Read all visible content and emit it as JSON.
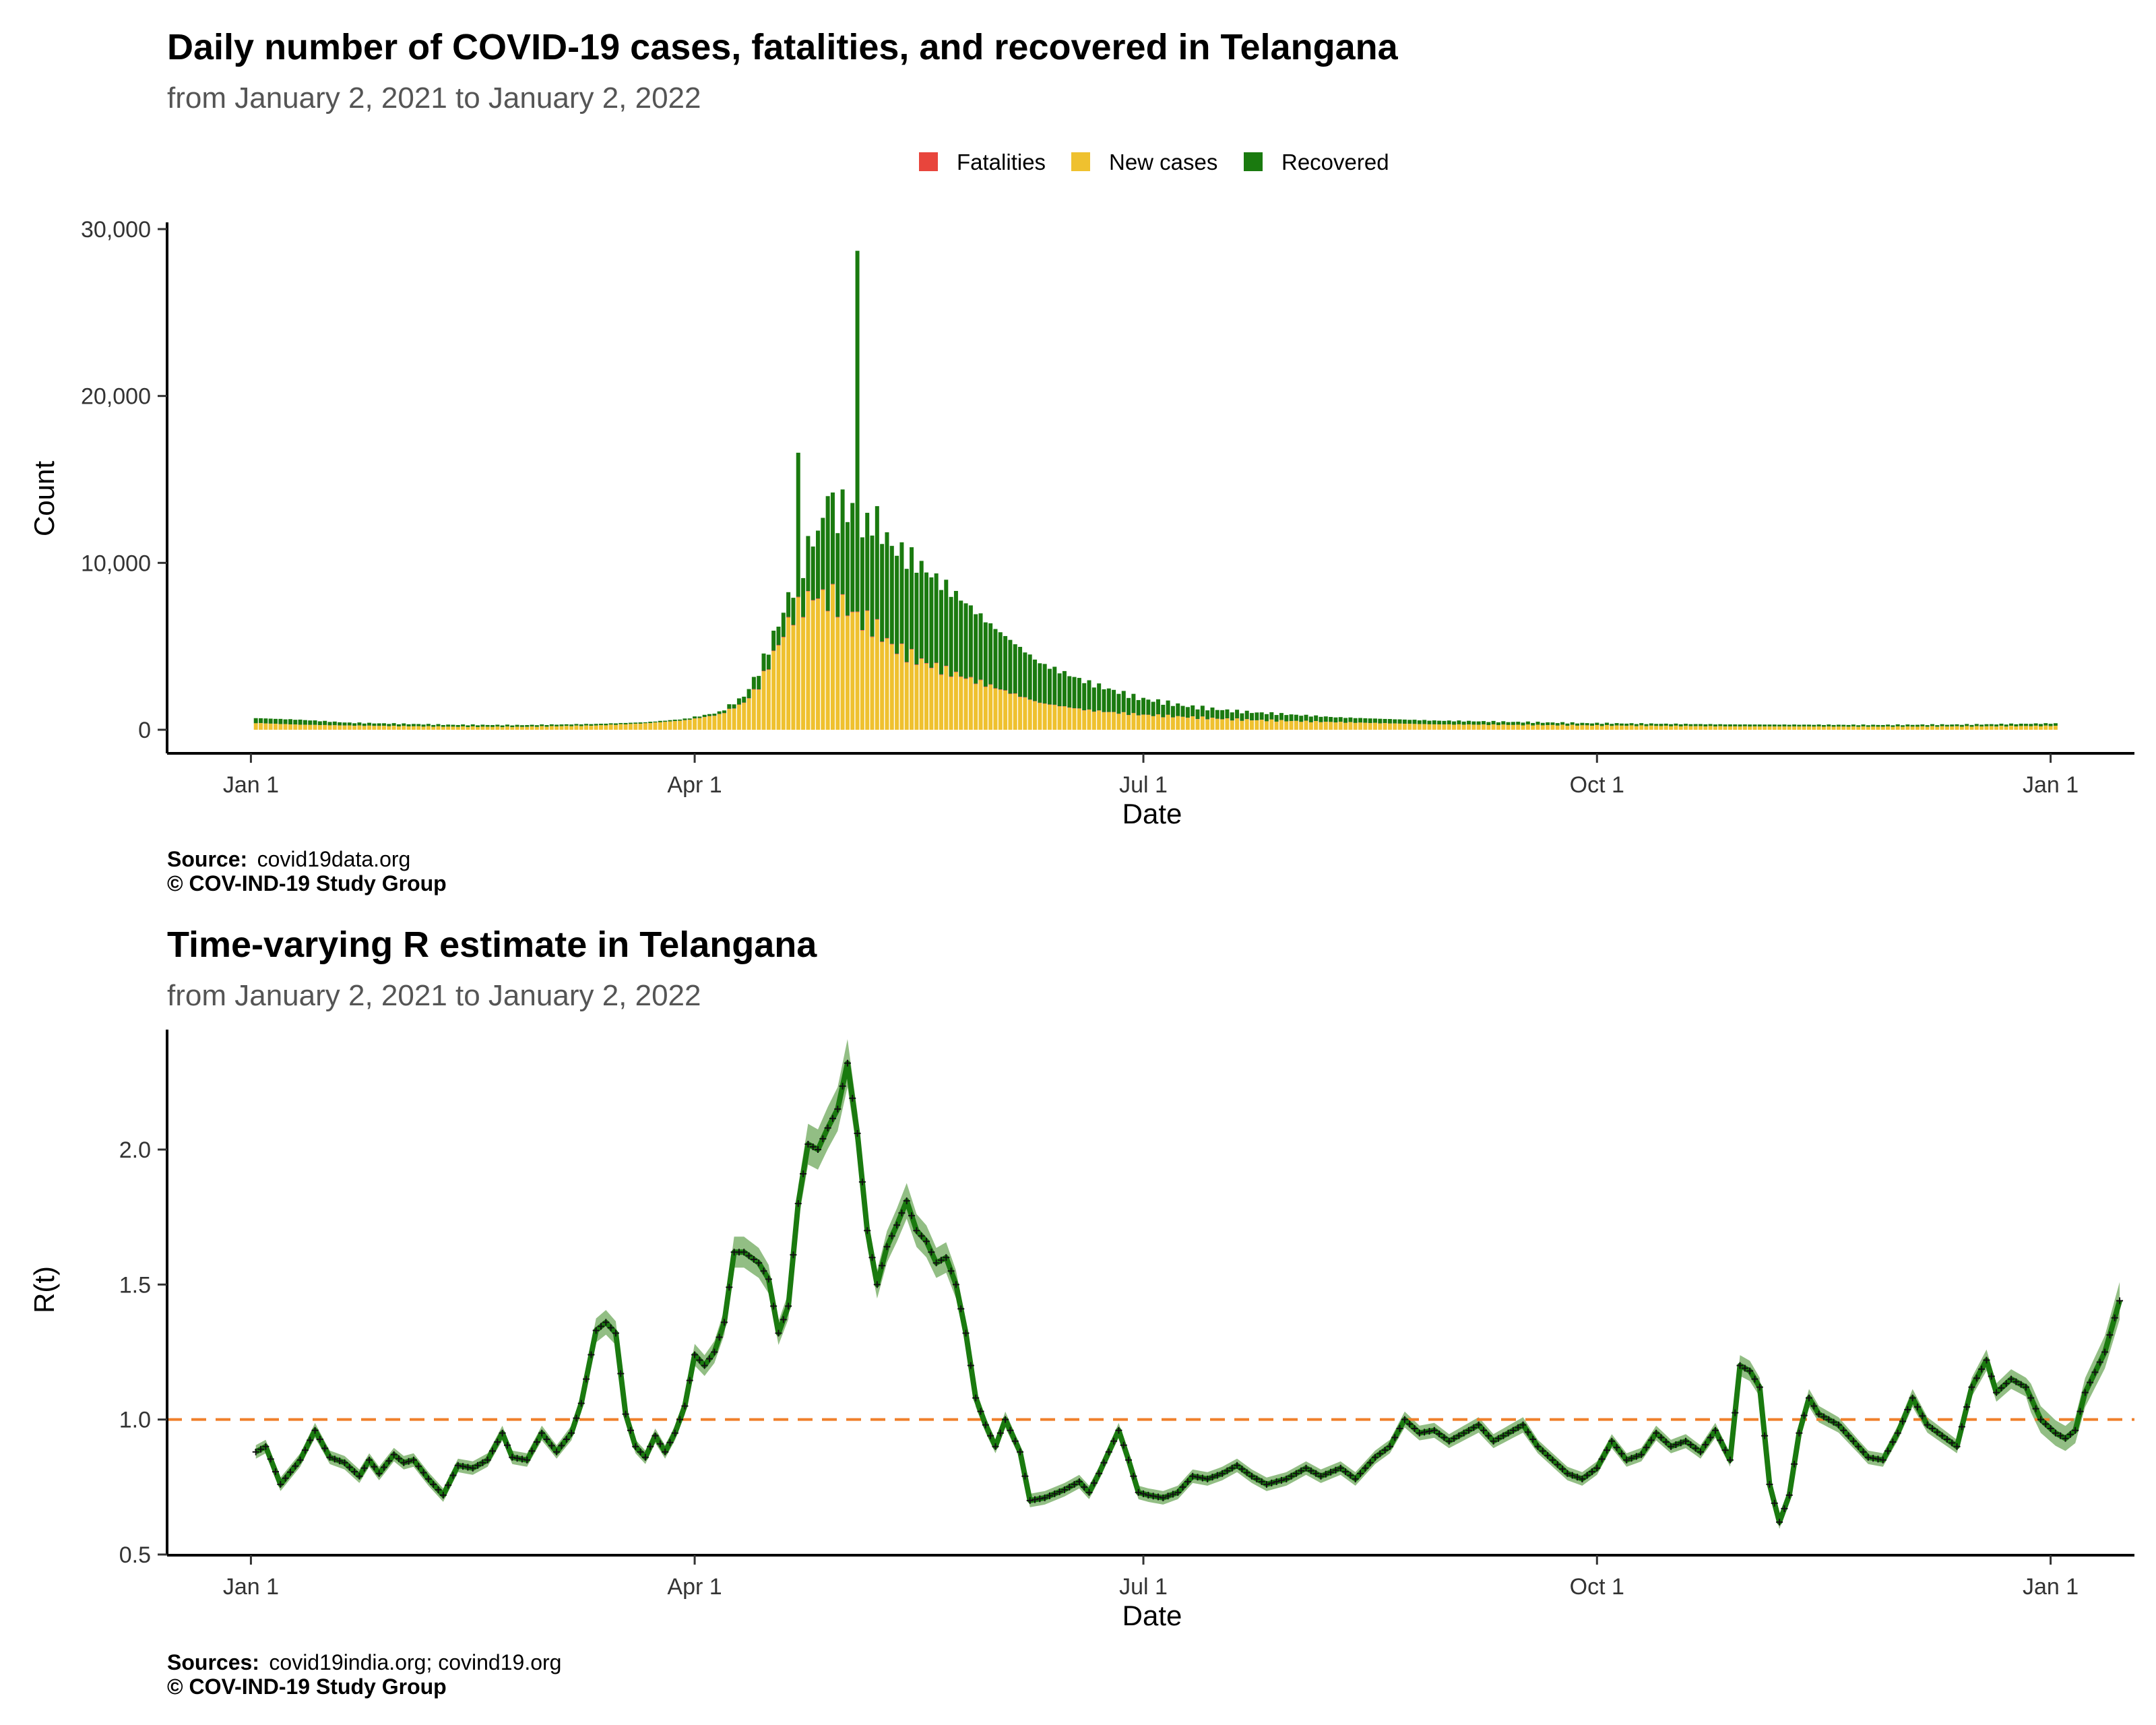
{
  "colors": {
    "fatalities": "#e8453c",
    "new_cases": "#efc12f",
    "recovered": "#1a7a0f",
    "r_line": "#1a7a0f",
    "r_ribbon": "#7fb36f",
    "threshold": "#f07f2a"
  },
  "chart_data": [
    {
      "type": "bar",
      "stacked": true,
      "title": "Daily number of COVID-19 cases, fatalities, and recovered in Telangana",
      "subtitle": "from January  2, 2021 to January  2, 2022",
      "xlabel": "Date",
      "ylabel": "Count",
      "ylim": [
        0,
        30000
      ],
      "yticks": [
        0,
        10000,
        20000,
        30000
      ],
      "ytick_labels": [
        "0",
        "10,000",
        "20,000",
        "30,000"
      ],
      "xticks": [
        0,
        90,
        181,
        273,
        365
      ],
      "xtick_labels": [
        "Jan  1",
        "Apr  1",
        "Jul  1",
        "Oct  1",
        "Jan  1"
      ],
      "x_domain": [
        -17,
        382
      ],
      "first_day_index": 1,
      "last_day_index": 366,
      "legend_position": "top",
      "legend": [
        "Fatalities",
        "New cases",
        "Recovered"
      ],
      "caption_source_label": "Source:",
      "caption_source": "covid19data.org",
      "caption_copyright": "© COV-IND-19 Study Group",
      "daily_profile_note": "values per day are interpolated from these anchor points (day index, count)",
      "new_cases_anchors": [
        [
          1,
          400
        ],
        [
          10,
          300
        ],
        [
          20,
          250
        ],
        [
          40,
          180
        ],
        [
          55,
          170
        ],
        [
          70,
          250
        ],
        [
          80,
          380
        ],
        [
          88,
          560
        ],
        [
          95,
          900
        ],
        [
          100,
          1600
        ],
        [
          103,
          2600
        ],
        [
          106,
          4500
        ],
        [
          110,
          6900
        ],
        [
          114,
          8000
        ],
        [
          118,
          7800
        ],
        [
          122,
          7000
        ],
        [
          124,
          6500
        ],
        [
          126,
          6300
        ],
        [
          130,
          5000
        ],
        [
          135,
          4200
        ],
        [
          140,
          3600
        ],
        [
          145,
          3100
        ],
        [
          150,
          2600
        ],
        [
          160,
          1600
        ],
        [
          170,
          1150
        ],
        [
          180,
          900
        ],
        [
          190,
          750
        ],
        [
          200,
          600
        ],
        [
          220,
          450
        ],
        [
          240,
          320
        ],
        [
          270,
          260
        ],
        [
          300,
          200
        ],
        [
          330,
          180
        ],
        [
          350,
          200
        ],
        [
          366,
          230
        ]
      ],
      "total_anchors": [
        [
          1,
          700
        ],
        [
          10,
          600
        ],
        [
          20,
          420
        ],
        [
          40,
          300
        ],
        [
          55,
          280
        ],
        [
          70,
          350
        ],
        [
          80,
          450
        ],
        [
          88,
          650
        ],
        [
          95,
          1050
        ],
        [
          100,
          2000
        ],
        [
          103,
          3500
        ],
        [
          106,
          5600
        ],
        [
          110,
          8600
        ],
        [
          114,
          11500
        ],
        [
          118,
          13000
        ],
        [
          122,
          13300
        ],
        [
          124,
          12200
        ],
        [
          126,
          12800
        ],
        [
          130,
          11000
        ],
        [
          135,
          10000
        ],
        [
          140,
          8800
        ],
        [
          145,
          7600
        ],
        [
          150,
          6300
        ],
        [
          160,
          4000
        ],
        [
          170,
          2800
        ],
        [
          180,
          1900
        ],
        [
          190,
          1400
        ],
        [
          200,
          1100
        ],
        [
          220,
          750
        ],
        [
          240,
          550
        ],
        [
          270,
          400
        ],
        [
          300,
          320
        ],
        [
          330,
          290
        ],
        [
          350,
          320
        ],
        [
          366,
          380
        ]
      ],
      "spikes": [
        [
          111,
          16600
        ],
        [
          117,
          14000
        ],
        [
          120,
          14400
        ],
        [
          123,
          28700
        ],
        [
          125,
          13000
        ]
      ],
      "fatalities_note": "daily fatalities are a few dozen at most, visually negligible"
    },
    {
      "type": "line",
      "title": "Time-varying R estimate in Telangana",
      "subtitle": "from January  2, 2021 to January  2, 2022",
      "xlabel": "Date",
      "ylabel": "R(t)",
      "ylim": [
        0.5,
        2.45
      ],
      "yticks": [
        0.5,
        1.0,
        1.5,
        2.0
      ],
      "ytick_labels": [
        "0.5",
        "1.0",
        "1.5",
        "2.0"
      ],
      "xticks": [
        0,
        90,
        181,
        273,
        365
      ],
      "xtick_labels": [
        "Jan  1",
        "Apr  1",
        "Jul  1",
        "Oct  1",
        "Jan  1"
      ],
      "x_domain": [
        -17,
        382
      ],
      "reference_line": 1.0,
      "caption_source_label": "Sources:",
      "caption_source": "covid19india.org; covind19.org",
      "caption_copyright": "© COV-IND-19 Study Group",
      "anchors_day_r": [
        [
          1,
          0.88
        ],
        [
          3,
          0.9
        ],
        [
          6,
          0.76
        ],
        [
          10,
          0.85
        ],
        [
          13,
          0.96
        ],
        [
          16,
          0.86
        ],
        [
          19,
          0.84
        ],
        [
          22,
          0.79
        ],
        [
          24,
          0.85
        ],
        [
          26,
          0.8
        ],
        [
          29,
          0.87
        ],
        [
          31,
          0.84
        ],
        [
          33,
          0.85
        ],
        [
          36,
          0.78
        ],
        [
          39,
          0.72
        ],
        [
          42,
          0.83
        ],
        [
          45,
          0.82
        ],
        [
          48,
          0.85
        ],
        [
          51,
          0.95
        ],
        [
          53,
          0.86
        ],
        [
          56,
          0.85
        ],
        [
          59,
          0.95
        ],
        [
          62,
          0.88
        ],
        [
          65,
          0.95
        ],
        [
          67,
          1.06
        ],
        [
          70,
          1.33
        ],
        [
          72,
          1.36
        ],
        [
          74,
          1.32
        ],
        [
          76,
          1.02
        ],
        [
          78,
          0.9
        ],
        [
          80,
          0.86
        ],
        [
          82,
          0.94
        ],
        [
          84,
          0.88
        ],
        [
          86,
          0.95
        ],
        [
          88,
          1.05
        ],
        [
          90,
          1.24
        ],
        [
          92,
          1.2
        ],
        [
          94,
          1.25
        ],
        [
          96,
          1.36
        ],
        [
          98,
          1.62
        ],
        [
          100,
          1.62
        ],
        [
          103,
          1.58
        ],
        [
          105,
          1.52
        ],
        [
          107,
          1.32
        ],
        [
          109,
          1.42
        ],
        [
          111,
          1.8
        ],
        [
          113,
          2.02
        ],
        [
          115,
          2.0
        ],
        [
          117,
          2.08
        ],
        [
          119,
          2.15
        ],
        [
          121,
          2.32
        ],
        [
          123,
          2.06
        ],
        [
          125,
          1.7
        ],
        [
          127,
          1.5
        ],
        [
          129,
          1.64
        ],
        [
          131,
          1.72
        ],
        [
          133,
          1.81
        ],
        [
          135,
          1.7
        ],
        [
          137,
          1.66
        ],
        [
          139,
          1.58
        ],
        [
          141,
          1.6
        ],
        [
          143,
          1.5
        ],
        [
          145,
          1.32
        ],
        [
          147,
          1.08
        ],
        [
          149,
          0.98
        ],
        [
          151,
          0.9
        ],
        [
          153,
          1.0
        ],
        [
          156,
          0.88
        ],
        [
          158,
          0.7
        ],
        [
          161,
          0.71
        ],
        [
          165,
          0.74
        ],
        [
          168,
          0.77
        ],
        [
          170,
          0.73
        ],
        [
          172,
          0.8
        ],
        [
          174,
          0.88
        ],
        [
          176,
          0.96
        ],
        [
          178,
          0.85
        ],
        [
          180,
          0.73
        ],
        [
          182,
          0.72
        ],
        [
          185,
          0.71
        ],
        [
          188,
          0.73
        ],
        [
          191,
          0.79
        ],
        [
          194,
          0.78
        ],
        [
          197,
          0.8
        ],
        [
          200,
          0.83
        ],
        [
          203,
          0.79
        ],
        [
          206,
          0.76
        ],
        [
          210,
          0.78
        ],
        [
          214,
          0.82
        ],
        [
          217,
          0.79
        ],
        [
          221,
          0.82
        ],
        [
          224,
          0.78
        ],
        [
          228,
          0.86
        ],
        [
          231,
          0.9
        ],
        [
          234,
          1.0
        ],
        [
          237,
          0.95
        ],
        [
          240,
          0.96
        ],
        [
          243,
          0.92
        ],
        [
          246,
          0.95
        ],
        [
          249,
          0.98
        ],
        [
          252,
          0.92
        ],
        [
          255,
          0.95
        ],
        [
          258,
          0.98
        ],
        [
          261,
          0.9
        ],
        [
          264,
          0.85
        ],
        [
          267,
          0.8
        ],
        [
          270,
          0.78
        ],
        [
          273,
          0.82
        ],
        [
          276,
          0.92
        ],
        [
          279,
          0.85
        ],
        [
          282,
          0.87
        ],
        [
          285,
          0.95
        ],
        [
          288,
          0.9
        ],
        [
          291,
          0.92
        ],
        [
          294,
          0.88
        ],
        [
          297,
          0.96
        ],
        [
          300,
          0.85
        ],
        [
          302,
          1.2
        ],
        [
          304,
          1.18
        ],
        [
          306,
          1.12
        ],
        [
          308,
          0.76
        ],
        [
          310,
          0.62
        ],
        [
          312,
          0.72
        ],
        [
          314,
          0.95
        ],
        [
          316,
          1.08
        ],
        [
          318,
          1.02
        ],
        [
          320,
          1.0
        ],
        [
          322,
          0.98
        ],
        [
          325,
          0.92
        ],
        [
          328,
          0.86
        ],
        [
          331,
          0.85
        ],
        [
          334,
          0.95
        ],
        [
          337,
          1.08
        ],
        [
          340,
          0.98
        ],
        [
          343,
          0.94
        ],
        [
          346,
          0.9
        ],
        [
          349,
          1.12
        ],
        [
          352,
          1.22
        ],
        [
          354,
          1.1
        ],
        [
          357,
          1.15
        ],
        [
          360,
          1.12
        ],
        [
          363,
          1.0
        ],
        [
          366,
          0.95
        ],
        [
          368,
          0.93
        ],
        [
          370,
          0.96
        ],
        [
          372,
          1.1
        ],
        [
          376,
          1.25
        ],
        [
          379,
          1.44
        ]
      ]
    }
  ]
}
